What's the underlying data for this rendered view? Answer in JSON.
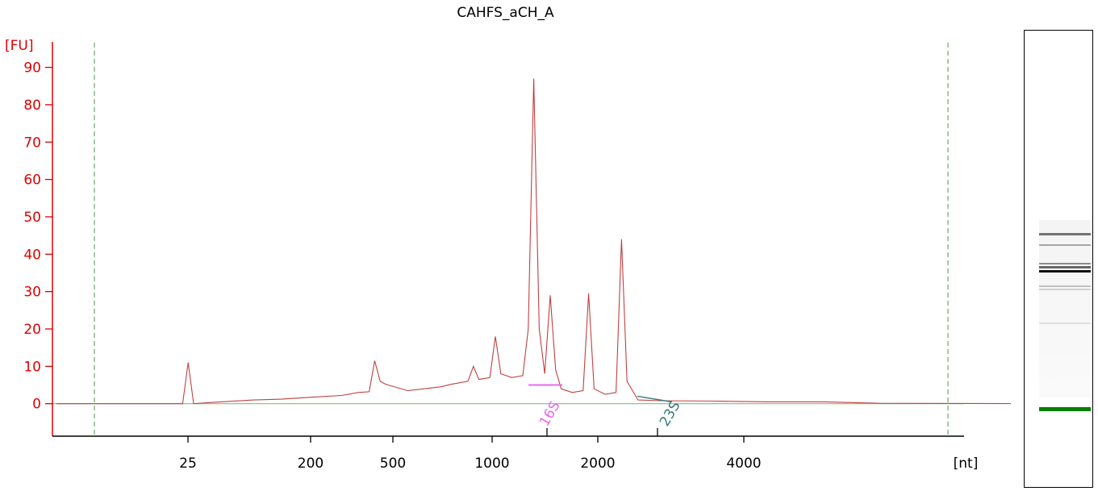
{
  "chart_data": {
    "type": "line",
    "title": "CAHFS_aCH_A",
    "ylabel": "[FU]",
    "xlabel": "[nt]",
    "ylim": [
      -8,
      95
    ],
    "y_ticks": [
      0,
      10,
      20,
      30,
      40,
      50,
      60,
      70,
      80,
      90
    ],
    "x_tick_labels": [
      "25",
      "200",
      "500",
      "1000",
      "2000",
      "4000"
    ],
    "grid": false,
    "legend": "none",
    "colors": {
      "trace": "#c04040",
      "axis_y": "#e00000",
      "axis_x": "#000000",
      "baseline": "#7fbf7f",
      "marker_lines": "#4a9a4a",
      "peak_16s": "#e86ae8",
      "peak_23s": "#3a7a7a",
      "gel_marker": "#008000"
    },
    "series": [
      {
        "values": [
          [
            0,
            0
          ],
          [
            0.23,
            0
          ],
          [
            0.24,
            11
          ],
          [
            0.25,
            0
          ],
          [
            0.29,
            0.4
          ],
          [
            0.36,
            1
          ],
          [
            0.41,
            1.2
          ],
          [
            0.47,
            1.8
          ],
          [
            0.52,
            2.2
          ],
          [
            0.55,
            3
          ],
          [
            0.57,
            3.2
          ],
          [
            0.58,
            11.5
          ],
          [
            0.59,
            6
          ],
          [
            0.6,
            5.2
          ],
          [
            0.64,
            3.5
          ],
          [
            0.66,
            3.8
          ],
          [
            0.7,
            4.5
          ],
          [
            0.72,
            5.2
          ],
          [
            0.75,
            6
          ],
          [
            0.76,
            10
          ],
          [
            0.77,
            6.5
          ],
          [
            0.79,
            7
          ],
          [
            0.8,
            18
          ],
          [
            0.81,
            8
          ],
          [
            0.83,
            7
          ],
          [
            0.85,
            7.5
          ],
          [
            0.86,
            20
          ],
          [
            0.87,
            87
          ],
          [
            0.88,
            20
          ],
          [
            0.89,
            8
          ],
          [
            0.9,
            29
          ],
          [
            0.91,
            9
          ],
          [
            0.92,
            4
          ],
          [
            0.94,
            3
          ],
          [
            0.96,
            3.5
          ],
          [
            0.97,
            29.5
          ],
          [
            0.98,
            4
          ],
          [
            1.0,
            2.5
          ],
          [
            1.02,
            3
          ],
          [
            1.03,
            44
          ],
          [
            1.04,
            6
          ],
          [
            1.06,
            1
          ],
          [
            1.1,
            0.8
          ],
          [
            1.2,
            0.7
          ],
          [
            1.3,
            0.5
          ],
          [
            1.4,
            0.5
          ],
          [
            1.5,
            0.1
          ],
          [
            1.8,
            0
          ]
        ]
      }
    ],
    "annotations": [
      {
        "label": "16S",
        "x": 0.86
      },
      {
        "label": "23S",
        "x": 1.04
      }
    ]
  },
  "gel": {
    "bands": [
      {
        "fu": 47,
        "shade": 0.55
      },
      {
        "fu": 44,
        "shade": 0.35
      },
      {
        "fu": 39,
        "shade": 0.45
      },
      {
        "fu": 38,
        "shade": 0.6
      },
      {
        "fu": 37,
        "shade": 0.95
      },
      {
        "fu": 33,
        "shade": 0.25
      },
      {
        "fu": 32,
        "shade": 0.18
      },
      {
        "fu": 23,
        "shade": 0.12
      }
    ]
  }
}
